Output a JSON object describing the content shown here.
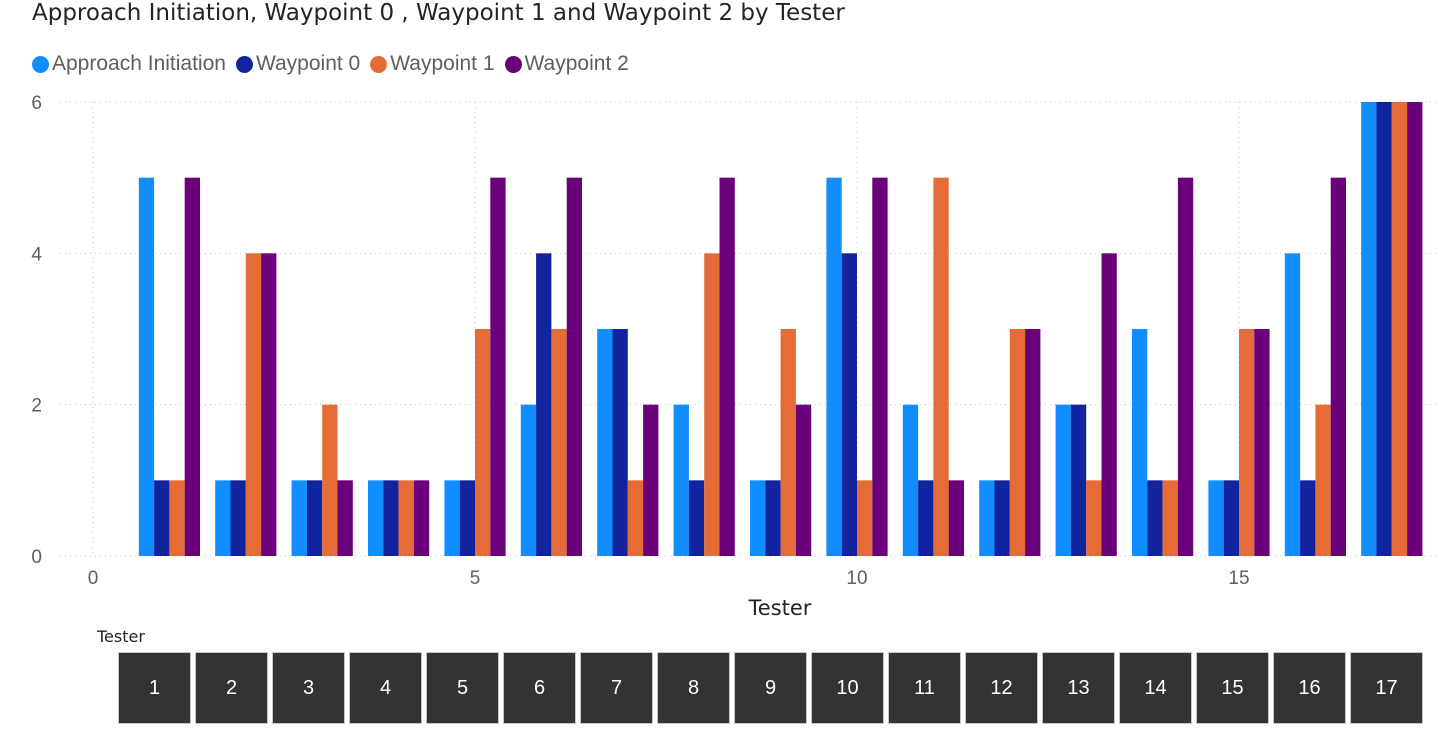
{
  "chart_data": {
    "type": "bar",
    "title": "Approach Initiation, Waypoint 0 , Waypoint 1 and Waypoint 2 by Tester",
    "xlabel": "Tester",
    "ylabel": "",
    "x": [
      1,
      2,
      3,
      4,
      5,
      6,
      7,
      8,
      9,
      10,
      11,
      12,
      13,
      14,
      15,
      16,
      17
    ],
    "xlim": [
      0,
      17.5
    ],
    "ylim": [
      0,
      6
    ],
    "x_ticks": [
      "0",
      "5",
      "10",
      "15"
    ],
    "y_ticks": [
      "0",
      "2",
      "4",
      "6"
    ],
    "grid": true,
    "legend_position": "top-left",
    "series": [
      {
        "name": "Approach Initiation",
        "color": "#118dff",
        "values": [
          5,
          1,
          1,
          1,
          1,
          2,
          3,
          2,
          1,
          5,
          2,
          1,
          2,
          3,
          1,
          4,
          6
        ]
      },
      {
        "name": "Waypoint 0",
        "color": "#12239e",
        "values": [
          1,
          1,
          1,
          1,
          1,
          4,
          3,
          1,
          1,
          4,
          1,
          1,
          2,
          1,
          1,
          1,
          6
        ]
      },
      {
        "name": "Waypoint 1",
        "color": "#e66c37",
        "values": [
          1,
          4,
          2,
          1,
          3,
          3,
          1,
          4,
          3,
          1,
          5,
          3,
          1,
          1,
          3,
          2,
          6
        ]
      },
      {
        "name": "Waypoint 2",
        "color": "#6b007b",
        "values": [
          5,
          4,
          1,
          1,
          5,
          5,
          2,
          5,
          2,
          5,
          1,
          3,
          4,
          5,
          3,
          5,
          6
        ]
      }
    ]
  },
  "slicer": {
    "title": "Tester",
    "items": [
      "1",
      "2",
      "3",
      "4",
      "5",
      "6",
      "7",
      "8",
      "9",
      "10",
      "11",
      "12",
      "13",
      "14",
      "15",
      "16",
      "17"
    ]
  }
}
